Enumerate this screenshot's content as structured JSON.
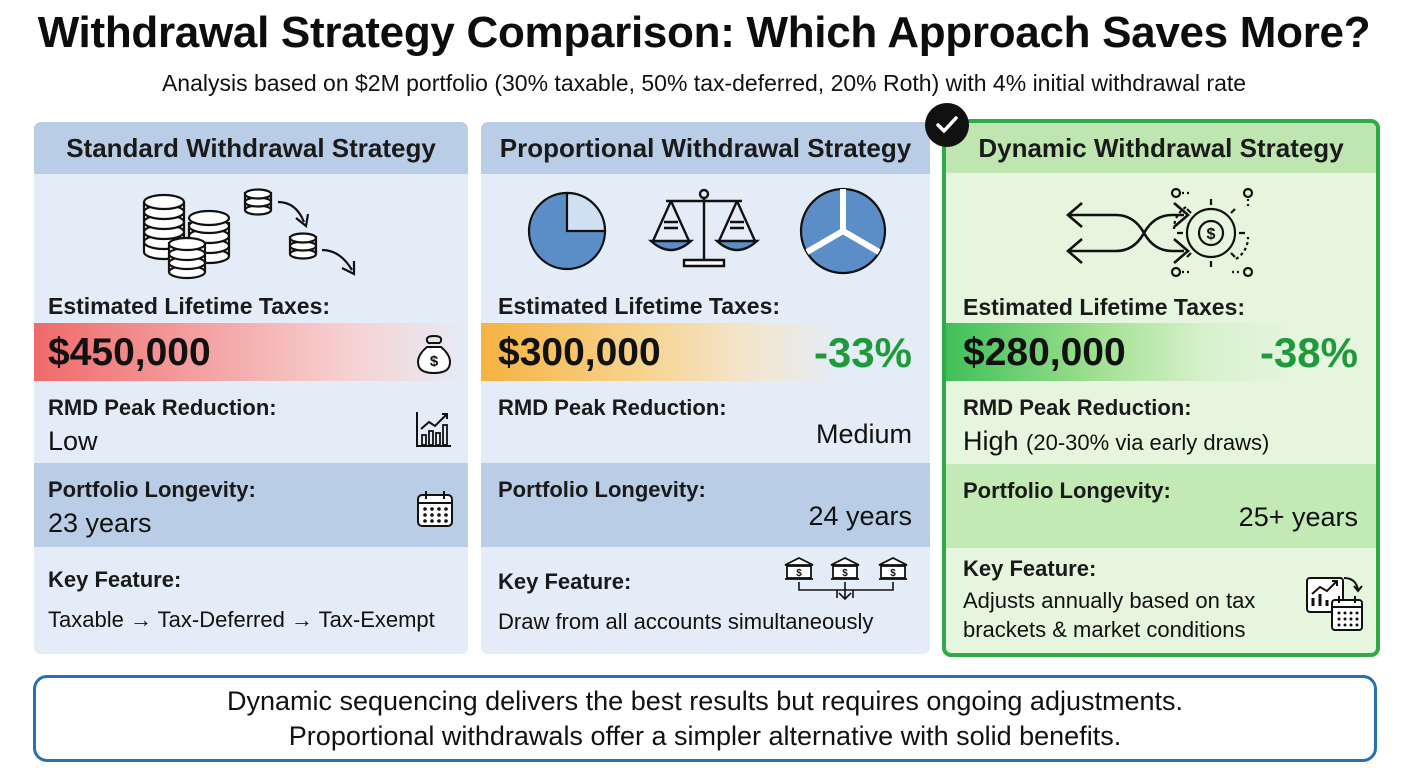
{
  "header": {
    "title": "Withdrawal Strategy Comparison: Which Approach Saves More?",
    "subtitle": "Analysis based on $2M portfolio (30% taxable, 50% tax-deferred, 20% Roth) with 4% initial withdrawal rate"
  },
  "labels": {
    "taxes": "Estimated Lifetime Taxes:",
    "rmd": "RMD Peak Reduction:",
    "longevity": "Portfolio Longevity:",
    "key": "Key Feature:"
  },
  "strategies": [
    {
      "name": "Standard Withdrawal Strategy",
      "taxes": "$450,000",
      "savings": "",
      "rmd": "Low",
      "longevity": "23 years",
      "key_feature": "Taxable → Tax-Deferred → Tax-Exempt",
      "icons": [
        "coin-stacks-icon",
        "money-bag-icon",
        "bar-chart-growth-icon",
        "calendar-icon"
      ]
    },
    {
      "name": "Proportional Withdrawal Strategy",
      "taxes": "$300,000",
      "savings": "-33%",
      "rmd": "Medium",
      "longevity": "24 years",
      "key_feature": "Draw from all accounts simultaneously",
      "icons": [
        "pie-chart-icon",
        "balance-scale-icon",
        "bank-accounts-icon"
      ]
    },
    {
      "name": "Dynamic Withdrawal Strategy",
      "taxes": "$280,000",
      "savings": "-38%",
      "rmd": "High",
      "rmd_note": "(20-30% via early draws)",
      "longevity": "25+ years",
      "key_feature_line1": "Adjusts annually based on tax",
      "key_feature_line2": "brackets & market conditions",
      "recommended": true,
      "icons": [
        "shuffle-arrows-icon",
        "gear-dollar-icon",
        "chart-calendar-icon",
        "checkmark-icon"
      ]
    }
  ],
  "summary": {
    "line1": "Dynamic sequencing delivers the best results but requires ongoing adjustments.",
    "line2": "Proportional withdrawals offer a simpler alternative with solid benefits."
  },
  "colors": {
    "blue_header": "#b9cde6",
    "card_bg": "#e4ecf7",
    "green_border": "#2faa46",
    "savings_green": "#1f9a3a",
    "summary_border": "#2a6fb3"
  }
}
